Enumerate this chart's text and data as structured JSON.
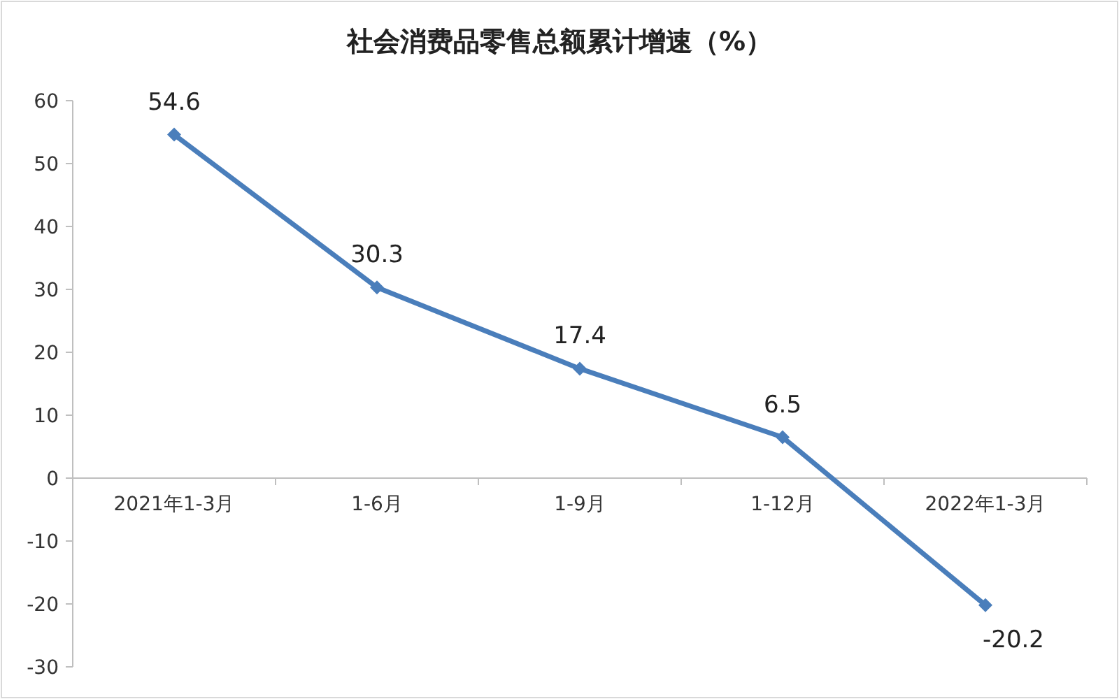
{
  "chart_data": {
    "type": "line",
    "title": "社会消费品零售总额累计增速（%）",
    "categories": [
      "2021年1-3月",
      "1-6月",
      "1-9月",
      "1-12月",
      "2022年1-3月"
    ],
    "values": [
      54.6,
      30.3,
      17.4,
      6.5,
      -20.2
    ],
    "color": "#4a7ebb",
    "marker": "diamond",
    "line_style": "solid",
    "data_labels": true,
    "grid": false,
    "ylim": [
      -30,
      60
    ],
    "yticks": [
      -30,
      -20,
      -10,
      0,
      10,
      20,
      30,
      40,
      50,
      60
    ]
  }
}
